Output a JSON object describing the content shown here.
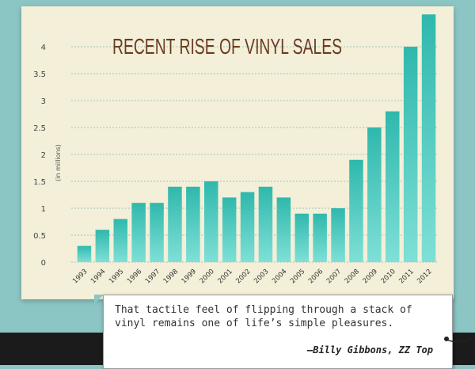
{
  "chart_data": {
    "type": "bar",
    "title": "RECENT RISE OF VINYL SALES",
    "ylabel": "(in millions)",
    "xlabel": "",
    "categories": [
      "1993",
      "1994",
      "1995",
      "1996",
      "1997",
      "1998",
      "1999",
      "2000",
      "2001",
      "2002",
      "2003",
      "2004",
      "2005",
      "2006",
      "2007",
      "2008",
      "2009",
      "2010",
      "2011",
      "2012"
    ],
    "values": [
      0.3,
      0.6,
      0.8,
      1.1,
      1.1,
      1.4,
      1.4,
      1.5,
      1.2,
      1.3,
      1.4,
      1.2,
      0.9,
      0.9,
      1.0,
      1.9,
      2.5,
      2.8,
      4.0,
      4.6
    ],
    "yticks": [
      "0",
      "0.5",
      "1",
      "1.5",
      "2",
      "2.5",
      "3",
      "3.5",
      "4"
    ],
    "ylim": [
      0,
      4.6
    ],
    "grid": true
  },
  "quote": {
    "text": "That tactile feel of flipping through a stack of vinyl remains one of life’s simple pleasures.",
    "author": "—Billy Gibbons, ZZ Top"
  },
  "colors": {
    "bar_top": "#2fb8ad",
    "bar_bottom": "#7fe0d6",
    "title": "#6b3b22",
    "background": "#8cc6c4",
    "card": "#f3efd8"
  }
}
